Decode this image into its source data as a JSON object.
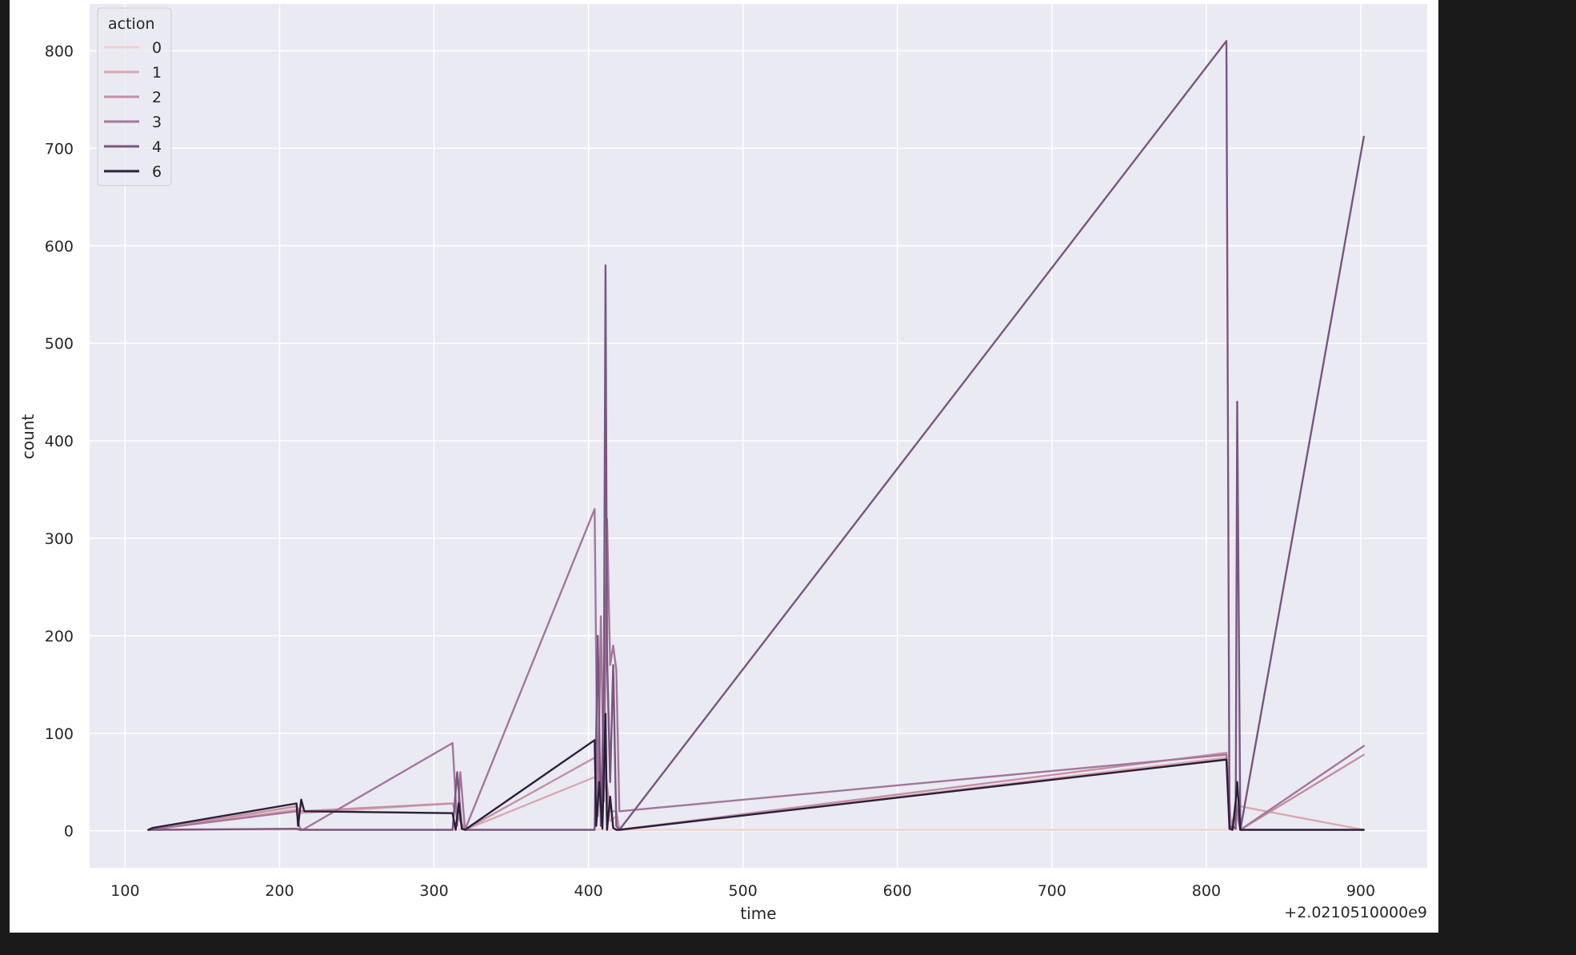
{
  "chart_data": {
    "type": "line",
    "title": "",
    "xlabel": "time",
    "ylabel": "count",
    "x_offset_label": "+2.0210510000e9",
    "xlim": [
      77,
      943
    ],
    "ylim": [
      -38,
      848
    ],
    "x_ticks": [
      100,
      200,
      300,
      400,
      500,
      600,
      700,
      800,
      900
    ],
    "y_ticks": [
      0,
      100,
      200,
      300,
      400,
      500,
      600,
      700,
      800
    ],
    "grid": true,
    "legend": {
      "title": "action",
      "position": "top-left",
      "entries": [
        "0",
        "1",
        "2",
        "3",
        "4",
        "6"
      ]
    },
    "colors": {
      "figure_background": "#1a1a1a",
      "plot_background": "#eaeaf2",
      "grid": "#ffffff",
      "text": "#262626"
    },
    "series": [
      {
        "name": "0",
        "color": "#f0d2cd",
        "x": [
          115,
          211,
          213,
          312,
          320,
          404,
          408,
          411,
          414,
          418,
          813,
          822,
          902
        ],
        "y": [
          1,
          1,
          1,
          1,
          1,
          1,
          1,
          1,
          1,
          1,
          1,
          1,
          1
        ]
      },
      {
        "name": "1",
        "color": "#dba8b1",
        "x": [
          115,
          211,
          213,
          312,
          320,
          404,
          408,
          411,
          414,
          418,
          420,
          813,
          816,
          819,
          822,
          902
        ],
        "y": [
          1,
          22,
          18,
          28,
          1,
          55,
          20,
          50,
          10,
          15,
          1,
          75,
          2,
          12,
          25,
          1
        ]
      },
      {
        "name": "2",
        "color": "#c48fa5",
        "x": [
          115,
          211,
          213,
          312,
          315,
          320,
          404,
          408,
          411,
          414,
          418,
          420,
          813,
          816,
          819,
          822,
          902
        ],
        "y": [
          1,
          25,
          20,
          28,
          15,
          1,
          75,
          30,
          60,
          20,
          20,
          1,
          80,
          5,
          20,
          1,
          78
        ]
      },
      {
        "name": "3",
        "color": "#a3769b",
        "x": [
          115,
          211,
          213,
          215,
          312,
          315,
          317,
          320,
          404,
          406,
          408,
          410,
          412,
          414,
          416,
          418,
          420,
          813,
          815,
          817,
          819,
          822,
          902
        ],
        "y": [
          1,
          20,
          3,
          1,
          90,
          5,
          60,
          1,
          330,
          15,
          220,
          30,
          320,
          170,
          190,
          165,
          20,
          78,
          5,
          3,
          30,
          1,
          87
        ]
      },
      {
        "name": "4",
        "color": "#7a557f",
        "x": [
          115,
          211,
          213,
          312,
          315,
          318,
          320,
          404,
          406,
          408,
          410,
          411,
          412,
          414,
          416,
          418,
          420,
          813,
          815,
          817,
          819,
          820,
          822,
          902
        ],
        "y": [
          1,
          2,
          1,
          1,
          60,
          2,
          1,
          1,
          200,
          5,
          150,
          580,
          180,
          50,
          170,
          5,
          1,
          810,
          3,
          5,
          2,
          440,
          1,
          712
        ]
      },
      {
        "name": "6",
        "color": "#2b1f3a",
        "x": [
          115,
          118,
          211,
          212,
          214,
          216,
          312,
          314,
          316,
          318,
          320,
          404,
          405,
          407,
          409,
          411,
          412,
          414,
          416,
          418,
          420,
          813,
          815,
          817,
          819,
          820,
          822,
          902
        ],
        "y": [
          1,
          3,
          28,
          5,
          32,
          20,
          18,
          1,
          28,
          2,
          1,
          93,
          5,
          50,
          2,
          120,
          1,
          35,
          3,
          1,
          1,
          73,
          2,
          1,
          30,
          50,
          1,
          1
        ]
      }
    ]
  }
}
